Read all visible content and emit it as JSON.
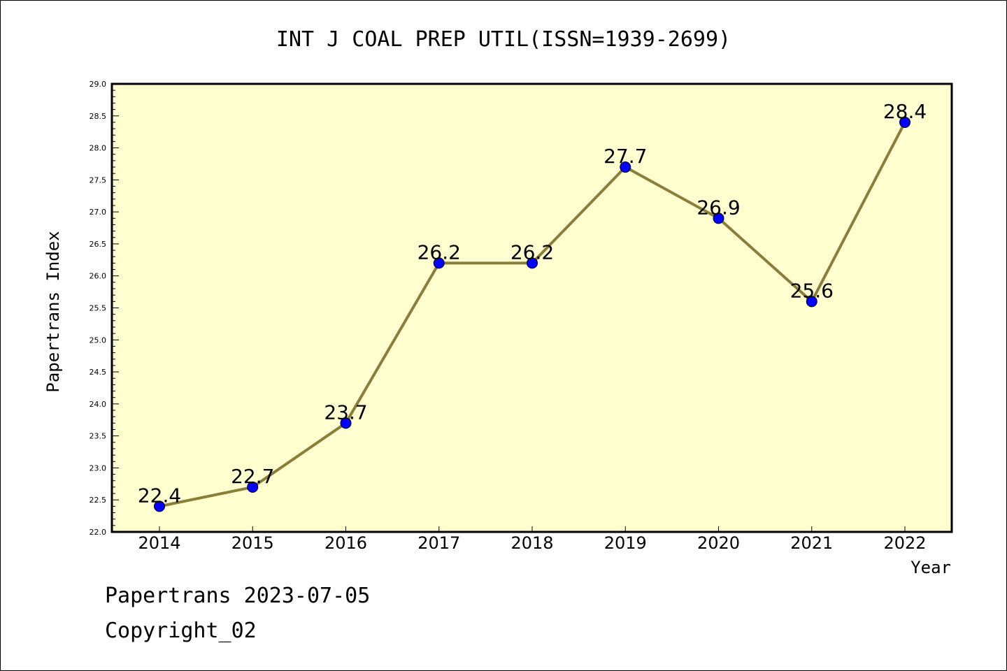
{
  "chart_data": {
    "type": "line",
    "title": "INT J COAL PREP UTIL(ISSN=1939-2699)",
    "xlabel": "Year",
    "ylabel": "Papertrans Index",
    "categories": [
      "2014",
      "2015",
      "2016",
      "2017",
      "2018",
      "2019",
      "2020",
      "2021",
      "2022"
    ],
    "values": [
      22.4,
      22.7,
      23.7,
      26.2,
      26.2,
      27.7,
      26.9,
      25.6,
      28.4
    ],
    "data_labels": [
      "22.4",
      "22.7",
      "23.7",
      "26.2",
      "26.2",
      "27.7",
      "26.9",
      "25.6",
      "28.4"
    ],
    "ylim": [
      22.0,
      29.0
    ],
    "yticks": [
      "22.0",
      "22.5",
      "23.0",
      "23.5",
      "24.0",
      "24.5",
      "25.0",
      "25.5",
      "26.0",
      "26.5",
      "27.0",
      "27.5",
      "28.0",
      "28.5",
      "29.0"
    ],
    "grid": false,
    "colors": {
      "plot_background": "#ffffd0",
      "line": "#8b7d3a",
      "marker": "#0000ff"
    }
  },
  "footer": {
    "line1": "Papertrans 2023-07-05",
    "line2": "Copyright_02"
  }
}
